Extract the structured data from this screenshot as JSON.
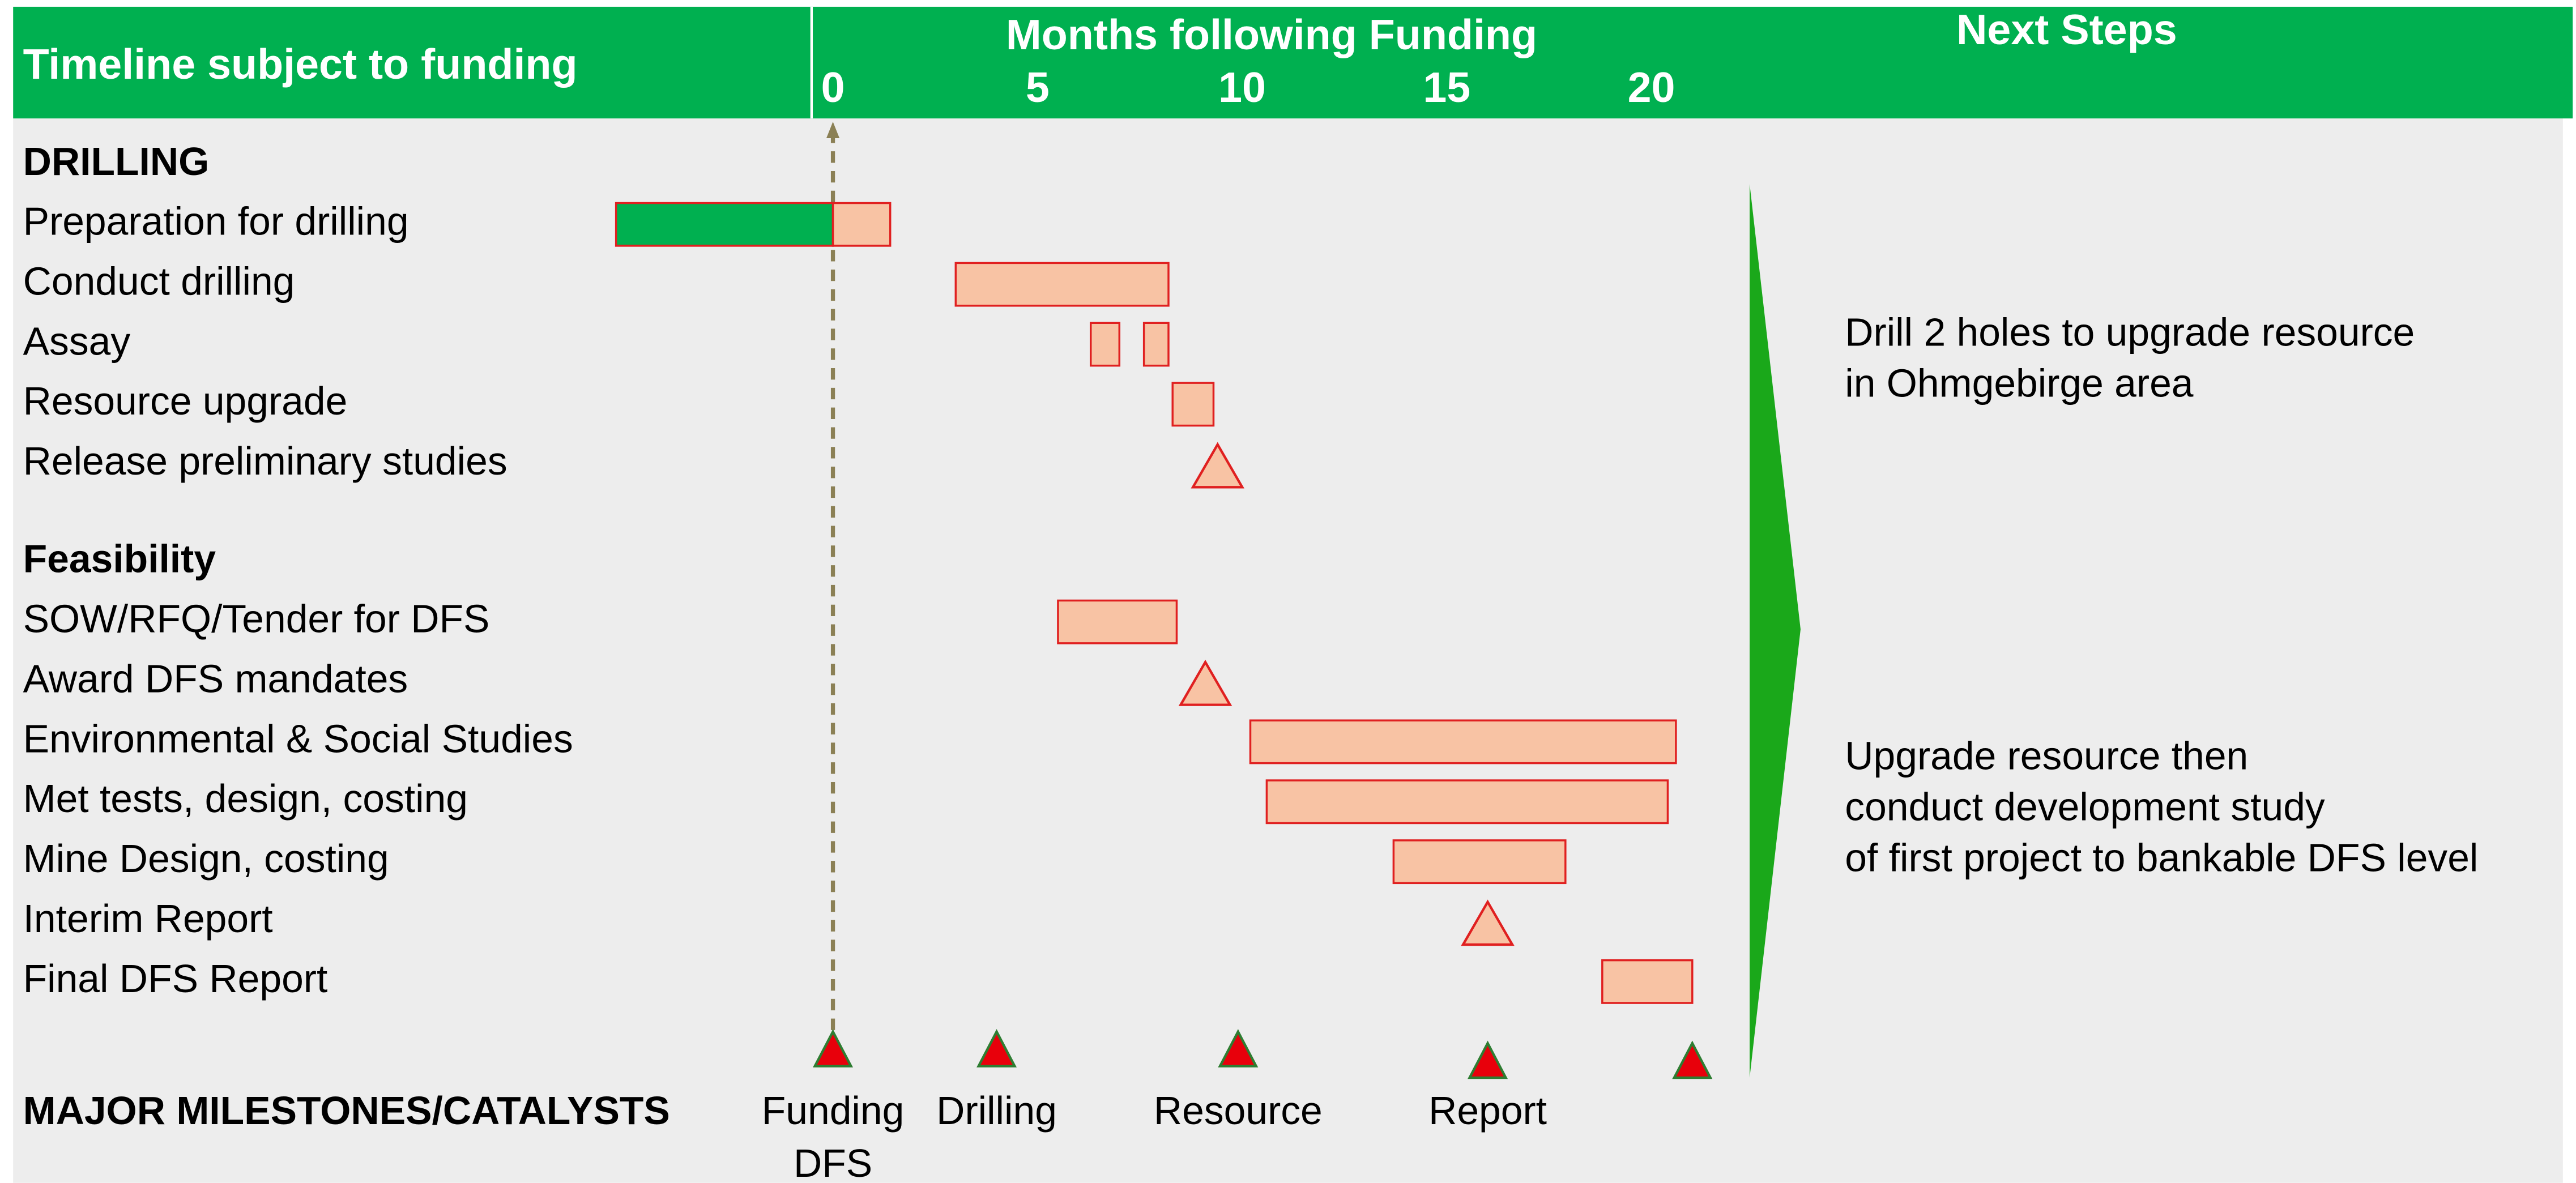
{
  "chart_data": {
    "type": "gantt",
    "header": {
      "left": "Timeline subject to funding",
      "axis_title": "Months following Funding",
      "right": "Next Steps"
    },
    "xlim": [
      -5.5,
      22
    ],
    "xticks": [
      0,
      5,
      10,
      15,
      20
    ],
    "bar_color": "#f8c3a4",
    "groups": [
      {
        "title": "DRILLING",
        "tasks": [
          {
            "name": "Preparation for drilling",
            "bars": [
              {
                "start": -5.3,
                "end": 0,
                "color": "#00b050"
              },
              {
                "start": 0,
                "end": 1.4
              }
            ]
          },
          {
            "name": "Conduct drilling",
            "bars": [
              {
                "start": 3,
                "end": 8.2
              }
            ]
          },
          {
            "name": "Assay",
            "bars": [
              {
                "start": 6.3,
                "end": 7
              },
              {
                "start": 7.6,
                "end": 8.2
              }
            ]
          },
          {
            "name": "Resource upgrade",
            "bars": [
              {
                "start": 8.3,
                "end": 9.3
              }
            ]
          },
          {
            "name": "Release preliminary studies",
            "milestone": 9.4
          }
        ]
      },
      {
        "title": "Feasibility",
        "tasks": [
          {
            "name": "SOW/RFQ/Tender for DFS",
            "bars": [
              {
                "start": 5.5,
                "end": 8.4
              }
            ]
          },
          {
            "name": "Award DFS mandates",
            "milestone": 9.1
          },
          {
            "name": "Environmental & Social Studies",
            "bars": [
              {
                "start": 10.2,
                "end": 20.6
              }
            ]
          },
          {
            "name": "Met tests, design, costing",
            "bars": [
              {
                "start": 10.6,
                "end": 20.4
              }
            ]
          },
          {
            "name": "Mine Design, costing",
            "bars": [
              {
                "start": 13.7,
                "end": 17.9
              }
            ]
          },
          {
            "name": "Interim Report",
            "milestone": 16
          },
          {
            "name": "Final DFS Report",
            "bars": [
              {
                "start": 18.8,
                "end": 21
              }
            ]
          }
        ]
      }
    ],
    "milestones_title": "MAJOR MILESTONES/CATALYSTS",
    "milestones": [
      {
        "value": 0,
        "label": [
          "Funding",
          "DFS"
        ]
      },
      {
        "value": 4,
        "label": [
          "Drilling"
        ]
      },
      {
        "value": 9.9,
        "label": [
          "Resource"
        ]
      },
      {
        "value": 16,
        "label": [
          "Report"
        ]
      },
      {
        "value": 21,
        "label": null
      }
    ],
    "notes": [
      [
        "Drill 2 holes to upgrade resource",
        "in Ohmgebirge area"
      ],
      [
        "Upgrade resource then",
        "conduct development study",
        "of first project to bankable DFS level"
      ]
    ]
  }
}
